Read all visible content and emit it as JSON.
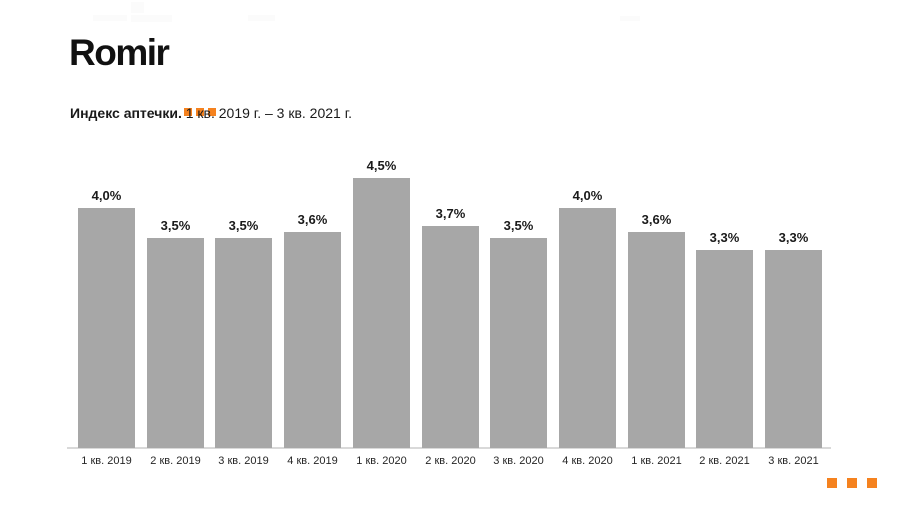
{
  "logo": {
    "text": "Romir",
    "accent_color": "#F5821F"
  },
  "title": {
    "bold": "Индекс аптечки.",
    "rest": " 1 кв. 2019 г. – 3 кв. 2021 г."
  },
  "chart_data": {
    "type": "bar",
    "title": "Индекс аптечки. 1 кв. 2019 г. – 3 кв. 2021 г.",
    "categories": [
      "1 кв. 2019",
      "2 кв. 2019",
      "3 кв. 2019",
      "4 кв. 2019",
      "1 кв. 2020",
      "2 кв. 2020",
      "3 кв. 2020",
      "4 кв. 2020",
      "1 кв. 2021",
      "2 кв. 2021",
      "3 кв. 2021"
    ],
    "values": [
      4.0,
      3.5,
      3.5,
      3.6,
      4.5,
      3.7,
      3.5,
      4.0,
      3.6,
      3.3,
      3.3
    ],
    "value_labels": [
      "4,0%",
      "3,5%",
      "3,5%",
      "3,6%",
      "4,5%",
      "3,7%",
      "3,5%",
      "4,0%",
      "3,6%",
      "3,3%",
      "3,3%"
    ],
    "xlabel": "",
    "ylabel": "",
    "ylim": [
      0,
      4.7
    ],
    "grid": false,
    "legend": false,
    "bar_color": "#A7A7A7",
    "axis_line_color": "#D9D9D9",
    "value_label_color": "#1A1A1A",
    "category_label_color": "#262626"
  },
  "footer": {
    "dots_count": 3,
    "dots_color": "#F5821F"
  }
}
